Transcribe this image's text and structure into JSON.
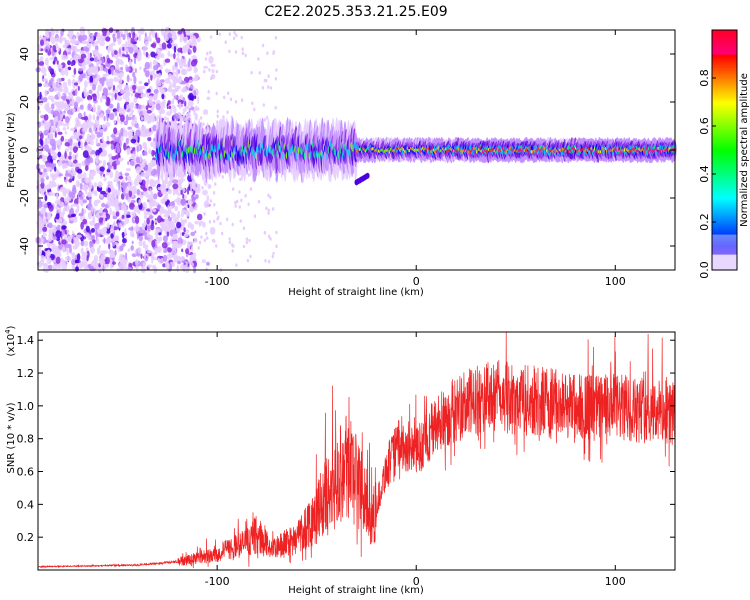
{
  "title": "C2E2.2025.353.21.25.E09",
  "colors": {
    "snr_line": "#ee2222",
    "frame": "#000000",
    "colormap": [
      "#ffffff",
      "#e6ccff",
      "#c08cff",
      "#8a2be2",
      "#4b00e0",
      "#0000ff",
      "#00c8ff",
      "#00ff80",
      "#80ff00",
      "#ffff00",
      "#ffa000",
      "#ff2000",
      "#ff0080"
    ]
  },
  "chart_data": [
    {
      "type": "heatmap",
      "name": "spectrogram",
      "xlabel": "Height of straight line (km)",
      "ylabel": "Frequency (Hz)",
      "xlim": [
        -190,
        130
      ],
      "ylim": [
        -50,
        50
      ],
      "xticks": [
        -100,
        0,
        100
      ],
      "xtick_labels": [
        "-100",
        "0",
        "100"
      ],
      "yticks": [
        -40,
        -20,
        0,
        20,
        40
      ],
      "ytick_labels": [
        "-40",
        "-20",
        "0",
        "20",
        "40"
      ],
      "ridge_center_hz": 0,
      "noise_region_km": [
        -190,
        -110
      ],
      "colorbar": {
        "label": "Normalized spectral amplitude",
        "range": [
          0,
          1
        ],
        "ticks": [
          0.0,
          0.2,
          0.4,
          0.6,
          0.8
        ],
        "tick_labels": [
          "0.0",
          "0.2",
          "0.4",
          "0.6",
          "0.8"
        ]
      }
    },
    {
      "type": "line",
      "name": "snr",
      "xlabel": "Height of straight line (km)",
      "ylabel": "SNR (10 * v/v)",
      "scale_label": "(x10",
      "scale_exp": "4",
      "scale_close": ")",
      "xlim": [
        -190,
        130
      ],
      "ylim": [
        0,
        1.45
      ],
      "xticks": [
        -100,
        0,
        100
      ],
      "xtick_labels": [
        "-100",
        "0",
        "100"
      ],
      "yticks": [
        0.2,
        0.4,
        0.6,
        0.8,
        1.0,
        1.2,
        1.4
      ],
      "ytick_labels": [
        "0.2",
        "0.4",
        "0.6",
        "0.8",
        "1.0",
        "1.2",
        "1.4"
      ],
      "envelope": {
        "x": [
          -190,
          -140,
          -120,
          -100,
          -85,
          -80,
          -72,
          -60,
          -50,
          -42,
          -35,
          -28,
          -22,
          -15,
          -8,
          0,
          10,
          20,
          30,
          40,
          50,
          60,
          70,
          80,
          90,
          100,
          110,
          120,
          130
        ],
        "y": [
          0.02,
          0.03,
          0.05,
          0.1,
          0.17,
          0.22,
          0.12,
          0.2,
          0.35,
          0.5,
          0.68,
          0.5,
          0.3,
          0.62,
          0.78,
          0.72,
          0.88,
          0.98,
          1.03,
          1.06,
          1.04,
          1.03,
          1.02,
          1.0,
          0.99,
          0.99,
          0.98,
          0.97,
          0.95
        ]
      }
    }
  ]
}
